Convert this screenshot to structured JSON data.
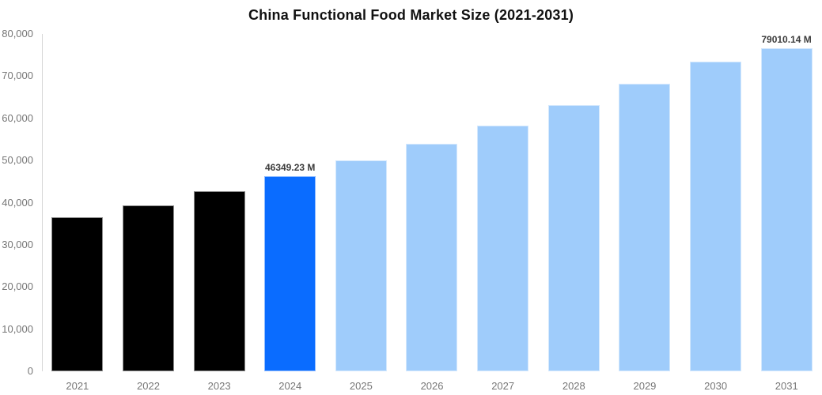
{
  "title": "China Functional Food Market Size (2021-2031)",
  "chart_data": {
    "type": "bar",
    "title": "China Functional Food Market Size (2021-2031)",
    "unit": "M",
    "categories": [
      "2021",
      "2022",
      "2023",
      "2024",
      "2025",
      "2026",
      "2027",
      "2028",
      "2029",
      "2030",
      "2031"
    ],
    "values": [
      36600,
      39400,
      42650,
      46349.23,
      50020,
      54000,
      58300,
      63100,
      68200,
      73500,
      79010.14
    ],
    "value_labels": {
      "3": "46349.23 M",
      "10": "79010.14 M"
    },
    "ylim": [
      0,
      80000
    ],
    "ytick_labels": [
      "0",
      "10,000",
      "20,000",
      "30,000",
      "40,000",
      "50,000",
      "60,000",
      "70,000",
      "80,000"
    ],
    "grid": false,
    "legend": false,
    "highlight_index": 3,
    "colors": {
      "historical": "#000000",
      "highlight": "#0a6cff",
      "forecast": "#9fccfb",
      "axis_line": "#d6d6d6",
      "axis_label": "#767676",
      "value_label": "#3c3c3c",
      "title": "#111111",
      "background": "#ffffff"
    }
  }
}
